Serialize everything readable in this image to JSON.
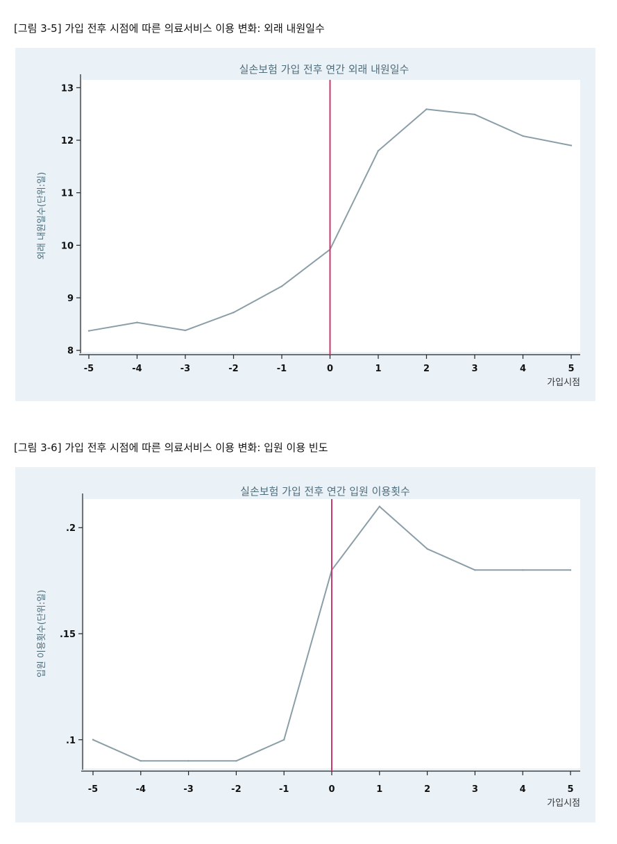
{
  "captions": [
    "[그림 3-5] 가입 전후 시점에 따른 의료서비스 이용 변화: 외래 내원일수",
    "[그림 3-6] 가입 전후 시점에 따른 의료서비스 이용 변화: 입원 이용 빈도"
  ],
  "colors": {
    "panel_background": "#eaf2f7",
    "plot_background": "#ffffff",
    "series_line": "#8a9ea8",
    "reference_line": "#c83a6e",
    "title_text": "#4f6c7a"
  },
  "chart_data": [
    {
      "type": "line",
      "title": "실손보험 가입 전후 연간 외래 내원일수",
      "xlabel": "가입시점",
      "ylabel": "외래 내원일수(단위:일)",
      "x": [
        -5,
        -4,
        -3,
        -2,
        -1,
        0,
        1,
        2,
        3,
        4,
        5
      ],
      "values": [
        8.37,
        8.53,
        8.38,
        8.72,
        9.22,
        9.92,
        11.8,
        12.59,
        12.49,
        12.08,
        11.9
      ],
      "xlim": [
        -5,
        5
      ],
      "ylim": [
        7.97,
        13.15
      ],
      "xticks": [
        "-5",
        "-4",
        "-3",
        "-2",
        "-1",
        "0",
        "1",
        "2",
        "3",
        "4",
        "5"
      ],
      "yticks": [
        "8",
        "9",
        "10",
        "11",
        "12",
        "13"
      ],
      "ytick_values": [
        8,
        9,
        10,
        11,
        12,
        13
      ],
      "reference_line_x": 0,
      "grid": false
    },
    {
      "type": "line",
      "title": "실손보험 가입 전후 연간 입원 이용횟수",
      "xlabel": "가입시점",
      "ylabel": "입원 이용횟수(단위:일)",
      "x": [
        -5,
        -4,
        -3,
        -2,
        -1,
        0,
        1,
        2,
        3,
        4,
        5
      ],
      "values": [
        0.1,
        0.09,
        0.09,
        0.09,
        0.1,
        0.18,
        0.21,
        0.19,
        0.18,
        0.18,
        0.18
      ],
      "xlim": [
        -5,
        5
      ],
      "ylim": [
        0.0865,
        0.2135
      ],
      "xticks": [
        "-5",
        "-4",
        "-3",
        "-2",
        "-1",
        "0",
        "1",
        "2",
        "3",
        "4",
        "5"
      ],
      "yticks": [
        ".1",
        ".15",
        ".2"
      ],
      "ytick_values": [
        0.1,
        0.15,
        0.2
      ],
      "reference_line_x": 0,
      "grid": false
    }
  ]
}
